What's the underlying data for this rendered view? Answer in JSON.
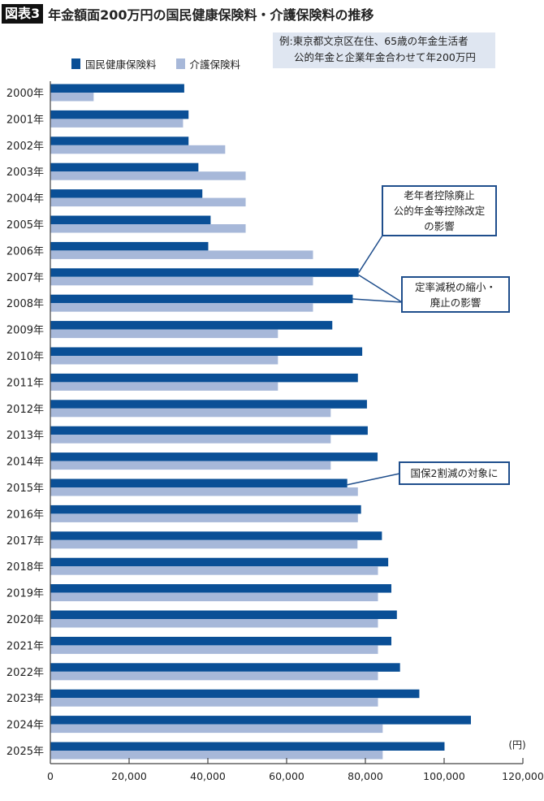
{
  "header": {
    "badge": "図表3",
    "title": "年金額面200万円の国民健康保険料・介護保険料の推移"
  },
  "note": {
    "line1": "例:東京都文京区在住、65歳の年金生活者",
    "line2": "公的年金と企業年金合わせて年200万円"
  },
  "callouts": [
    {
      "lines": [
        "老年者控除廃止",
        "公的年金等控除改定",
        "の影響"
      ]
    },
    {
      "lines": [
        "定率減税の縮小・",
        "廃止の影響"
      ]
    },
    {
      "lines": [
        "国保2割減の対象に"
      ]
    }
  ],
  "chart_data": {
    "type": "bar",
    "orientation": "horizontal",
    "unit_label": "(円)",
    "xlim": [
      0,
      120000
    ],
    "xticks": [
      "0",
      "20,000",
      "40,000",
      "60,000",
      "80,000",
      "100,000",
      "120,000"
    ],
    "categories": [
      "2000年",
      "2001年",
      "2002年",
      "2003年",
      "2004年",
      "2005年",
      "2006年",
      "2007年",
      "2008年",
      "2009年",
      "2010年",
      "2011年",
      "2012年",
      "2013年",
      "2014年",
      "2015年",
      "2016年",
      "2017年",
      "2018年",
      "2019年",
      "2020年",
      "2021年",
      "2022年",
      "2023年",
      "2024年",
      "2025年"
    ],
    "series": [
      {
        "name": "国民健康保険料",
        "color": "#0a4f96",
        "values": [
          34000,
          35100,
          35100,
          37600,
          38600,
          40700,
          40100,
          78300,
          76800,
          71600,
          79200,
          78100,
          80400,
          80600,
          83100,
          75400,
          78900,
          84200,
          85800,
          86600,
          88000,
          86600,
          88800,
          93700,
          106800,
          100100
        ]
      },
      {
        "name": "介護保険料",
        "color": "#a7b8d9",
        "values": [
          11000,
          33700,
          44400,
          49600,
          49600,
          49600,
          66700,
          66700,
          66700,
          57800,
          57800,
          57800,
          71200,
          71200,
          71200,
          78100,
          78100,
          78000,
          83200,
          83200,
          83200,
          83200,
          83200,
          83200,
          84400,
          84400
        ]
      }
    ],
    "grid": false,
    "legend": "top-left"
  }
}
